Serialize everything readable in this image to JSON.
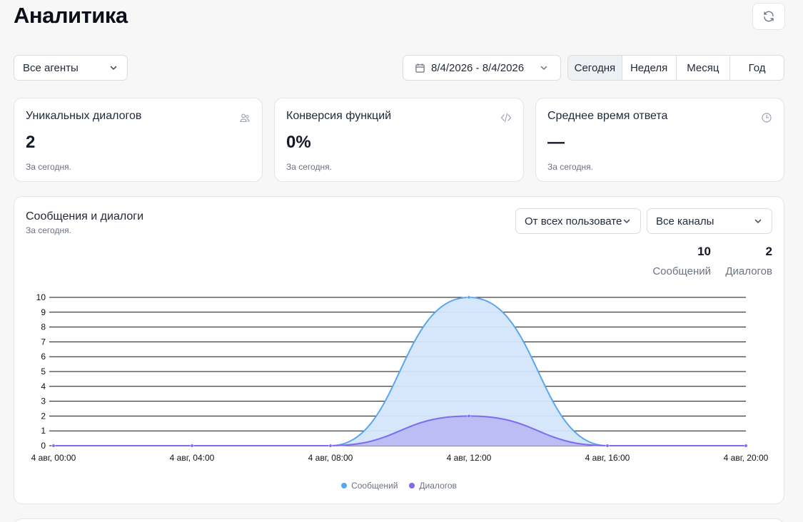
{
  "header": {
    "title": "Аналитика",
    "refresh_icon": "refresh-icon"
  },
  "filters": {
    "agent_select": "Все агенты",
    "date_range": "8/4/2026 - 8/4/2026",
    "periods": [
      "Сегодня",
      "Неделя",
      "Месяц",
      "Год"
    ],
    "active_period": "Сегодня"
  },
  "cards": [
    {
      "title": "Уникальных диалогов",
      "value": "2",
      "sub": "За сегодня.",
      "icon": "users-icon"
    },
    {
      "title": "Конверсия функций",
      "value": "0%",
      "sub": "За сегодня.",
      "icon": "code-icon"
    },
    {
      "title": "Среднее время ответа",
      "value": "—",
      "sub": "За сегодня.",
      "icon": "clock-icon"
    }
  ],
  "chart_section": {
    "title": "Сообщения и диалоги",
    "subtitle": "За сегодня.",
    "users_select": "От всех пользователей",
    "channels_select": "Все каналы",
    "stats": [
      {
        "value": "10",
        "label": "Сообщений"
      },
      {
        "value": "2",
        "label": "Диалогов"
      }
    ]
  },
  "chart_data": {
    "type": "area",
    "title": "",
    "xlabel": "",
    "ylabel": "",
    "x": [
      "4 авг, 00:00",
      "4 авг, 04:00",
      "4 авг, 08:00",
      "4 авг, 12:00",
      "4 авг, 16:00",
      "4 авг, 20:00"
    ],
    "ylim": [
      0,
      10
    ],
    "yticks": [
      0,
      1,
      2,
      3,
      4,
      5,
      6,
      7,
      8,
      9,
      10
    ],
    "grid": true,
    "legend": "bottom-center",
    "series": [
      {
        "name": "Сообщений",
        "values": [
          0,
          0,
          0,
          10,
          0,
          0
        ],
        "color": "#5aa5ee",
        "fill": "#d5e6fb"
      },
      {
        "name": "Диалогов",
        "values": [
          0,
          0,
          0,
          2,
          0,
          0
        ],
        "color": "#7b6cf0",
        "fill": "#b8b5f5"
      }
    ]
  }
}
